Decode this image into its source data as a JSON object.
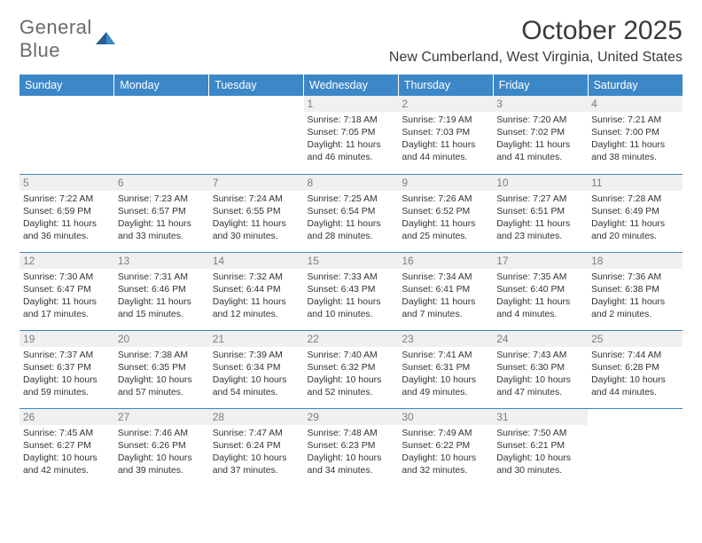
{
  "logo": {
    "text1": "General",
    "text2": "Blue"
  },
  "title": "October 2025",
  "location": "New Cumberland, West Virginia, United States",
  "colors": {
    "header_bg": "#3c87c7",
    "header_text": "#ffffff",
    "row_border": "#3c87c7",
    "daynum_bg": "#f0f0f0",
    "daynum_text": "#7e7e7e",
    "body_text": "#333333",
    "logo_gray": "#6a6a6a",
    "logo_blue": "#3c7fbf"
  },
  "day_headers": [
    "Sunday",
    "Monday",
    "Tuesday",
    "Wednesday",
    "Thursday",
    "Friday",
    "Saturday"
  ],
  "weeks": [
    [
      {
        "n": "",
        "l1": "",
        "l2": "",
        "l3": "",
        "l4": ""
      },
      {
        "n": "",
        "l1": "",
        "l2": "",
        "l3": "",
        "l4": ""
      },
      {
        "n": "",
        "l1": "",
        "l2": "",
        "l3": "",
        "l4": ""
      },
      {
        "n": "1",
        "l1": "Sunrise: 7:18 AM",
        "l2": "Sunset: 7:05 PM",
        "l3": "Daylight: 11 hours",
        "l4": "and 46 minutes."
      },
      {
        "n": "2",
        "l1": "Sunrise: 7:19 AM",
        "l2": "Sunset: 7:03 PM",
        "l3": "Daylight: 11 hours",
        "l4": "and 44 minutes."
      },
      {
        "n": "3",
        "l1": "Sunrise: 7:20 AM",
        "l2": "Sunset: 7:02 PM",
        "l3": "Daylight: 11 hours",
        "l4": "and 41 minutes."
      },
      {
        "n": "4",
        "l1": "Sunrise: 7:21 AM",
        "l2": "Sunset: 7:00 PM",
        "l3": "Daylight: 11 hours",
        "l4": "and 38 minutes."
      }
    ],
    [
      {
        "n": "5",
        "l1": "Sunrise: 7:22 AM",
        "l2": "Sunset: 6:59 PM",
        "l3": "Daylight: 11 hours",
        "l4": "and 36 minutes."
      },
      {
        "n": "6",
        "l1": "Sunrise: 7:23 AM",
        "l2": "Sunset: 6:57 PM",
        "l3": "Daylight: 11 hours",
        "l4": "and 33 minutes."
      },
      {
        "n": "7",
        "l1": "Sunrise: 7:24 AM",
        "l2": "Sunset: 6:55 PM",
        "l3": "Daylight: 11 hours",
        "l4": "and 30 minutes."
      },
      {
        "n": "8",
        "l1": "Sunrise: 7:25 AM",
        "l2": "Sunset: 6:54 PM",
        "l3": "Daylight: 11 hours",
        "l4": "and 28 minutes."
      },
      {
        "n": "9",
        "l1": "Sunrise: 7:26 AM",
        "l2": "Sunset: 6:52 PM",
        "l3": "Daylight: 11 hours",
        "l4": "and 25 minutes."
      },
      {
        "n": "10",
        "l1": "Sunrise: 7:27 AM",
        "l2": "Sunset: 6:51 PM",
        "l3": "Daylight: 11 hours",
        "l4": "and 23 minutes."
      },
      {
        "n": "11",
        "l1": "Sunrise: 7:28 AM",
        "l2": "Sunset: 6:49 PM",
        "l3": "Daylight: 11 hours",
        "l4": "and 20 minutes."
      }
    ],
    [
      {
        "n": "12",
        "l1": "Sunrise: 7:30 AM",
        "l2": "Sunset: 6:47 PM",
        "l3": "Daylight: 11 hours",
        "l4": "and 17 minutes."
      },
      {
        "n": "13",
        "l1": "Sunrise: 7:31 AM",
        "l2": "Sunset: 6:46 PM",
        "l3": "Daylight: 11 hours",
        "l4": "and 15 minutes."
      },
      {
        "n": "14",
        "l1": "Sunrise: 7:32 AM",
        "l2": "Sunset: 6:44 PM",
        "l3": "Daylight: 11 hours",
        "l4": "and 12 minutes."
      },
      {
        "n": "15",
        "l1": "Sunrise: 7:33 AM",
        "l2": "Sunset: 6:43 PM",
        "l3": "Daylight: 11 hours",
        "l4": "and 10 minutes."
      },
      {
        "n": "16",
        "l1": "Sunrise: 7:34 AM",
        "l2": "Sunset: 6:41 PM",
        "l3": "Daylight: 11 hours",
        "l4": "and 7 minutes."
      },
      {
        "n": "17",
        "l1": "Sunrise: 7:35 AM",
        "l2": "Sunset: 6:40 PM",
        "l3": "Daylight: 11 hours",
        "l4": "and 4 minutes."
      },
      {
        "n": "18",
        "l1": "Sunrise: 7:36 AM",
        "l2": "Sunset: 6:38 PM",
        "l3": "Daylight: 11 hours",
        "l4": "and 2 minutes."
      }
    ],
    [
      {
        "n": "19",
        "l1": "Sunrise: 7:37 AM",
        "l2": "Sunset: 6:37 PM",
        "l3": "Daylight: 10 hours",
        "l4": "and 59 minutes."
      },
      {
        "n": "20",
        "l1": "Sunrise: 7:38 AM",
        "l2": "Sunset: 6:35 PM",
        "l3": "Daylight: 10 hours",
        "l4": "and 57 minutes."
      },
      {
        "n": "21",
        "l1": "Sunrise: 7:39 AM",
        "l2": "Sunset: 6:34 PM",
        "l3": "Daylight: 10 hours",
        "l4": "and 54 minutes."
      },
      {
        "n": "22",
        "l1": "Sunrise: 7:40 AM",
        "l2": "Sunset: 6:32 PM",
        "l3": "Daylight: 10 hours",
        "l4": "and 52 minutes."
      },
      {
        "n": "23",
        "l1": "Sunrise: 7:41 AM",
        "l2": "Sunset: 6:31 PM",
        "l3": "Daylight: 10 hours",
        "l4": "and 49 minutes."
      },
      {
        "n": "24",
        "l1": "Sunrise: 7:43 AM",
        "l2": "Sunset: 6:30 PM",
        "l3": "Daylight: 10 hours",
        "l4": "and 47 minutes."
      },
      {
        "n": "25",
        "l1": "Sunrise: 7:44 AM",
        "l2": "Sunset: 6:28 PM",
        "l3": "Daylight: 10 hours",
        "l4": "and 44 minutes."
      }
    ],
    [
      {
        "n": "26",
        "l1": "Sunrise: 7:45 AM",
        "l2": "Sunset: 6:27 PM",
        "l3": "Daylight: 10 hours",
        "l4": "and 42 minutes."
      },
      {
        "n": "27",
        "l1": "Sunrise: 7:46 AM",
        "l2": "Sunset: 6:26 PM",
        "l3": "Daylight: 10 hours",
        "l4": "and 39 minutes."
      },
      {
        "n": "28",
        "l1": "Sunrise: 7:47 AM",
        "l2": "Sunset: 6:24 PM",
        "l3": "Daylight: 10 hours",
        "l4": "and 37 minutes."
      },
      {
        "n": "29",
        "l1": "Sunrise: 7:48 AM",
        "l2": "Sunset: 6:23 PM",
        "l3": "Daylight: 10 hours",
        "l4": "and 34 minutes."
      },
      {
        "n": "30",
        "l1": "Sunrise: 7:49 AM",
        "l2": "Sunset: 6:22 PM",
        "l3": "Daylight: 10 hours",
        "l4": "and 32 minutes."
      },
      {
        "n": "31",
        "l1": "Sunrise: 7:50 AM",
        "l2": "Sunset: 6:21 PM",
        "l3": "Daylight: 10 hours",
        "l4": "and 30 minutes."
      },
      {
        "n": "",
        "l1": "",
        "l2": "",
        "l3": "",
        "l4": ""
      }
    ]
  ]
}
